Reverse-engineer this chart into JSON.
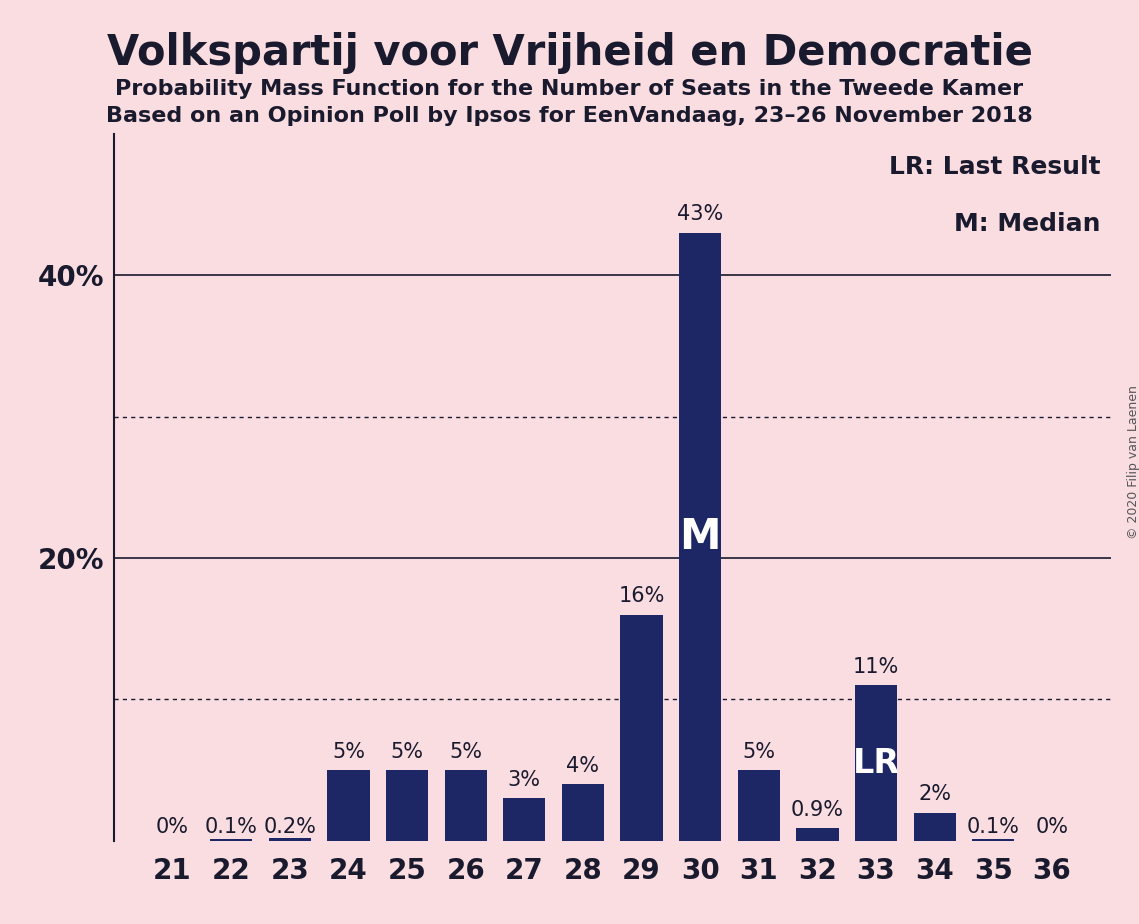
{
  "title": "Volkspartij voor Vrijheid en Democratie",
  "subtitle1": "Probability Mass Function for the Number of Seats in the Tweede Kamer",
  "subtitle2": "Based on an Opinion Poll by Ipsos for EenVandaag, 23–26 November 2018",
  "copyright": "© 2020 Filip van Laenen",
  "seats": [
    21,
    22,
    23,
    24,
    25,
    26,
    27,
    28,
    29,
    30,
    31,
    32,
    33,
    34,
    35,
    36
  ],
  "values": [
    0.0,
    0.1,
    0.2,
    5.0,
    5.0,
    5.0,
    3.0,
    4.0,
    16.0,
    43.0,
    5.0,
    0.9,
    11.0,
    2.0,
    0.1,
    0.0
  ],
  "labels": [
    "0%",
    "0.1%",
    "0.2%",
    "5%",
    "5%",
    "5%",
    "3%",
    "4%",
    "16%",
    "43%",
    "5%",
    "0.9%",
    "11%",
    "2%",
    "0.1%",
    "0%"
  ],
  "bar_color": "#1e2766",
  "background_color": "#f9dde0",
  "median_seat": 30,
  "lr_seat": 33,
  "legend_lr": "LR: Last Result",
  "legend_m": "M: Median",
  "yticks": [
    0,
    20,
    40
  ],
  "ytick_labels": [
    "",
    "20%",
    "40%"
  ],
  "dotted_gridlines": [
    10,
    30
  ],
  "solid_gridlines": [
    20,
    40
  ],
  "ylim": [
    0,
    50
  ],
  "title_fontsize": 30,
  "subtitle_fontsize": 16,
  "axis_fontsize": 20,
  "bar_label_fontsize": 15,
  "legend_fontsize": 18,
  "copyright_fontsize": 9
}
